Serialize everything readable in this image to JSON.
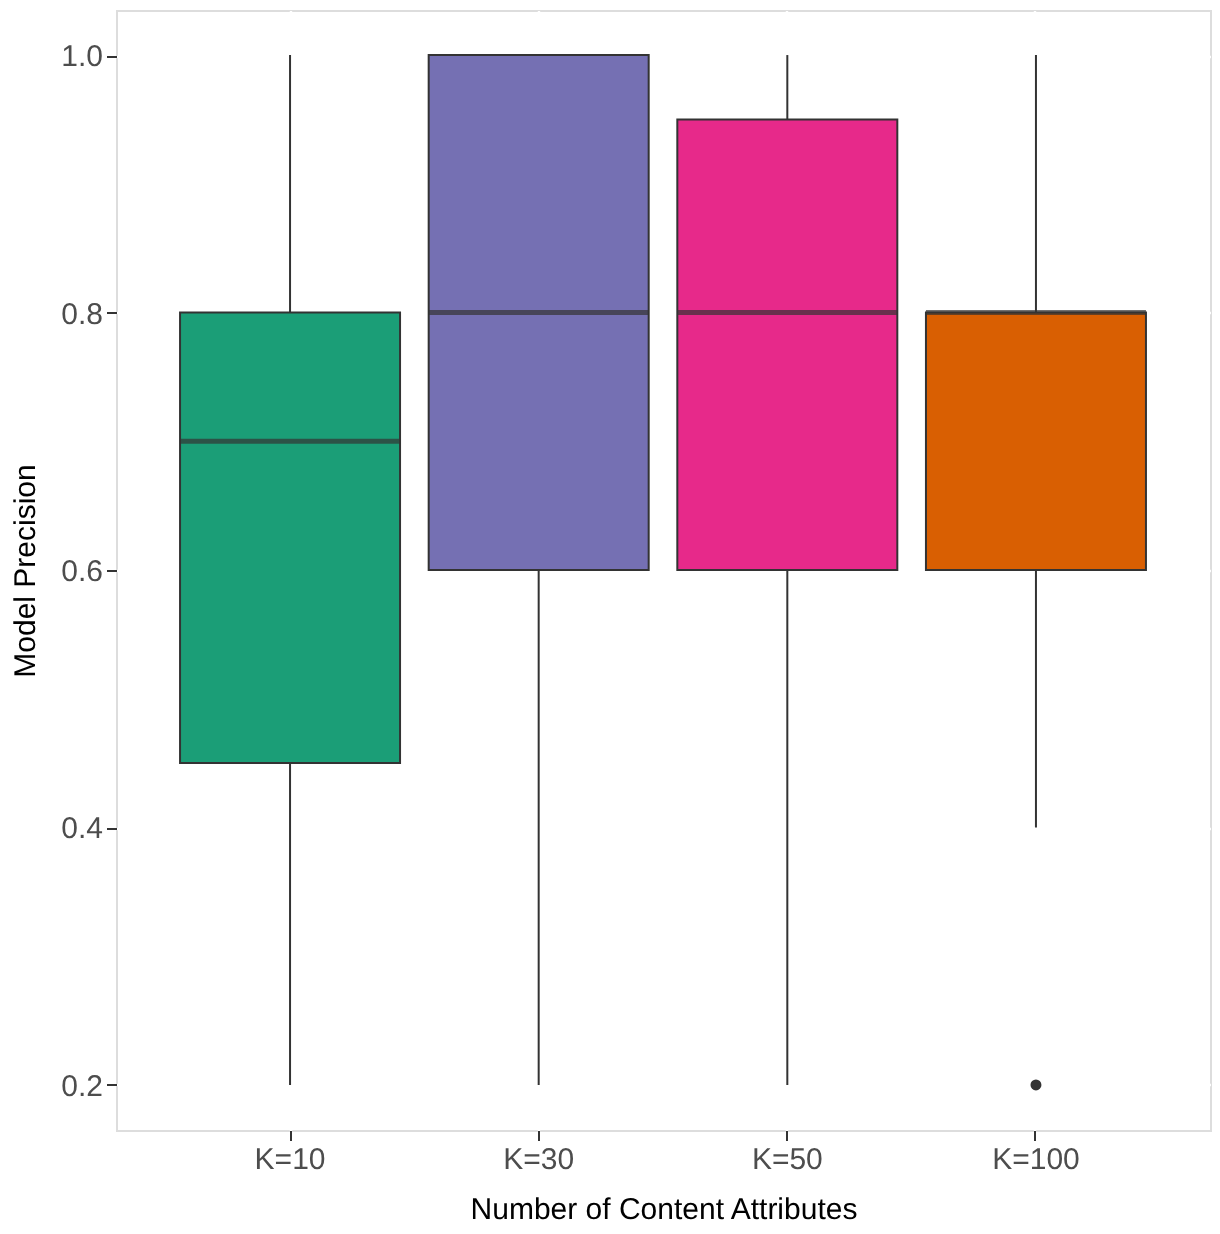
{
  "chart_data": {
    "type": "box",
    "xlabel": "Number of Content Attributes",
    "ylabel": "Model Precision",
    "categories": [
      "K=10",
      "K=30",
      "K=50",
      "K=100"
    ],
    "boxes": [
      {
        "low": 0.2,
        "q1": 0.45,
        "median": 0.7,
        "q3": 0.8,
        "high": 1.0
      },
      {
        "low": 0.2,
        "q1": 0.6,
        "median": 0.8,
        "q3": 1.0,
        "high": 1.0
      },
      {
        "low": 0.2,
        "q1": 0.6,
        "median": 0.8,
        "q3": 0.95,
        "high": 1.0
      },
      {
        "low": 0.4,
        "q1": 0.6,
        "median": 0.8,
        "q3": 0.8,
        "high": 1.0,
        "outliers": [
          0.2
        ]
      }
    ],
    "colors": [
      "#1b9e77",
      "#7570b3",
      "#e7298a",
      "#d95f02"
    ],
    "ylim": [
      0.165,
      1.035
    ],
    "yticks": [
      0.2,
      0.4,
      0.6,
      0.8,
      {
        "value": 1,
        "label": "1.0"
      }
    ],
    "grid": true,
    "legend": false
  }
}
